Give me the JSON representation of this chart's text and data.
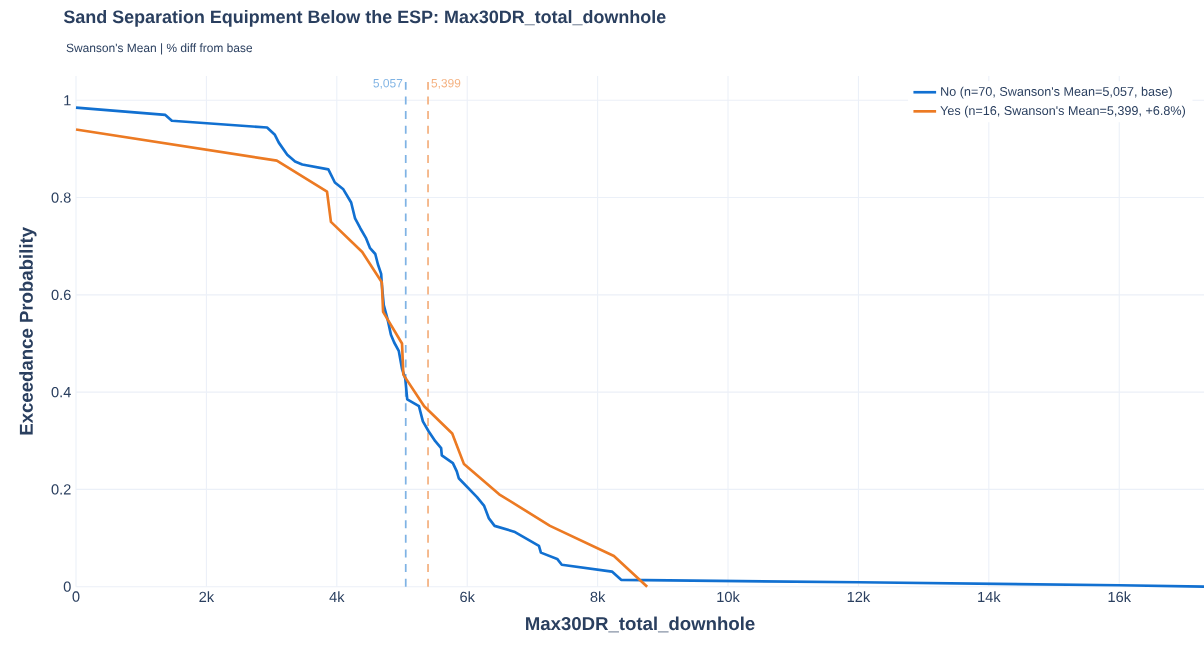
{
  "chart_data": {
    "type": "line",
    "title": "Sand Separation Equipment Below the ESP: Max30DR_total_downhole",
    "subtitle": "Swanson's Mean | % diff from base",
    "xlabel": "Max30DR_total_downhole",
    "ylabel": "Exceedance Probability",
    "series": [
      {
        "name": "No (n=70, Swanson's Mean=5,057, base)",
        "color": "#1170d1",
        "x": [
          0,
          1370,
          1470,
          2930,
          3050,
          3110,
          3240,
          3360,
          3470,
          3870,
          3970,
          4100,
          4220,
          4280,
          4360,
          4450,
          4510,
          4590,
          4630,
          4680,
          4690,
          4720,
          4780,
          4830,
          4880,
          4950,
          5000,
          5050,
          5080,
          5260,
          5320,
          5410,
          5510,
          5600,
          5610,
          5780,
          5840,
          5870,
          6150,
          6260,
          6330,
          6420,
          6720,
          7100,
          7130,
          7380,
          7450,
          8220,
          8360,
          12000,
          16000,
          17300
        ],
        "values": [
          0.985,
          0.97,
          0.958,
          0.944,
          0.929,
          0.913,
          0.888,
          0.874,
          0.868,
          0.858,
          0.831,
          0.817,
          0.79,
          0.757,
          0.737,
          0.716,
          0.696,
          0.684,
          0.663,
          0.643,
          0.622,
          0.579,
          0.549,
          0.518,
          0.502,
          0.485,
          0.448,
          0.428,
          0.385,
          0.371,
          0.34,
          0.319,
          0.299,
          0.285,
          0.27,
          0.254,
          0.237,
          0.223,
          0.184,
          0.166,
          0.141,
          0.125,
          0.113,
          0.084,
          0.07,
          0.057,
          0.045,
          0.031,
          0.014,
          0.009,
          0.003,
          0.0
        ]
      },
      {
        "name": "Yes (n=16, Swanson's Mean=5,399, +6.8%)",
        "color": "#ec7a23",
        "x": [
          0,
          3080,
          3850,
          3910,
          4390,
          4690,
          4710,
          5000,
          5020,
          5340,
          5770,
          5950,
          6490,
          7270,
          8250,
          8760
        ],
        "values": [
          0.94,
          0.876,
          0.812,
          0.75,
          0.688,
          0.626,
          0.565,
          0.5,
          0.436,
          0.371,
          0.315,
          0.252,
          0.19,
          0.125,
          0.063,
          0.0
        ]
      }
    ],
    "ref_lines": [
      {
        "axis": "x",
        "value": 5057,
        "label": "5,057",
        "color": "#7fb3e4",
        "line_style": "dashed"
      },
      {
        "axis": "x",
        "value": 5399,
        "label": "5,399",
        "color": "#f4b07f",
        "line_style": "dashed"
      }
    ],
    "xlim": [
      0,
      17300
    ],
    "ylim": [
      0,
      1.05
    ],
    "xticks": [
      0,
      {
        "value": 2000,
        "label": "2k"
      },
      {
        "value": 4000,
        "label": "4k"
      },
      {
        "value": 6000,
        "label": "6k"
      },
      {
        "value": 8000,
        "label": "8k"
      },
      {
        "value": 10000,
        "label": "10k"
      },
      {
        "value": 12000,
        "label": "12k"
      },
      {
        "value": 14000,
        "label": "14k"
      },
      {
        "value": 16000,
        "label": "16k"
      }
    ],
    "yticks": [
      0,
      0.2,
      0.4,
      0.6,
      0.8,
      1
    ],
    "grid": true,
    "legend": "top right",
    "marker": "none",
    "line_style": "solid"
  }
}
